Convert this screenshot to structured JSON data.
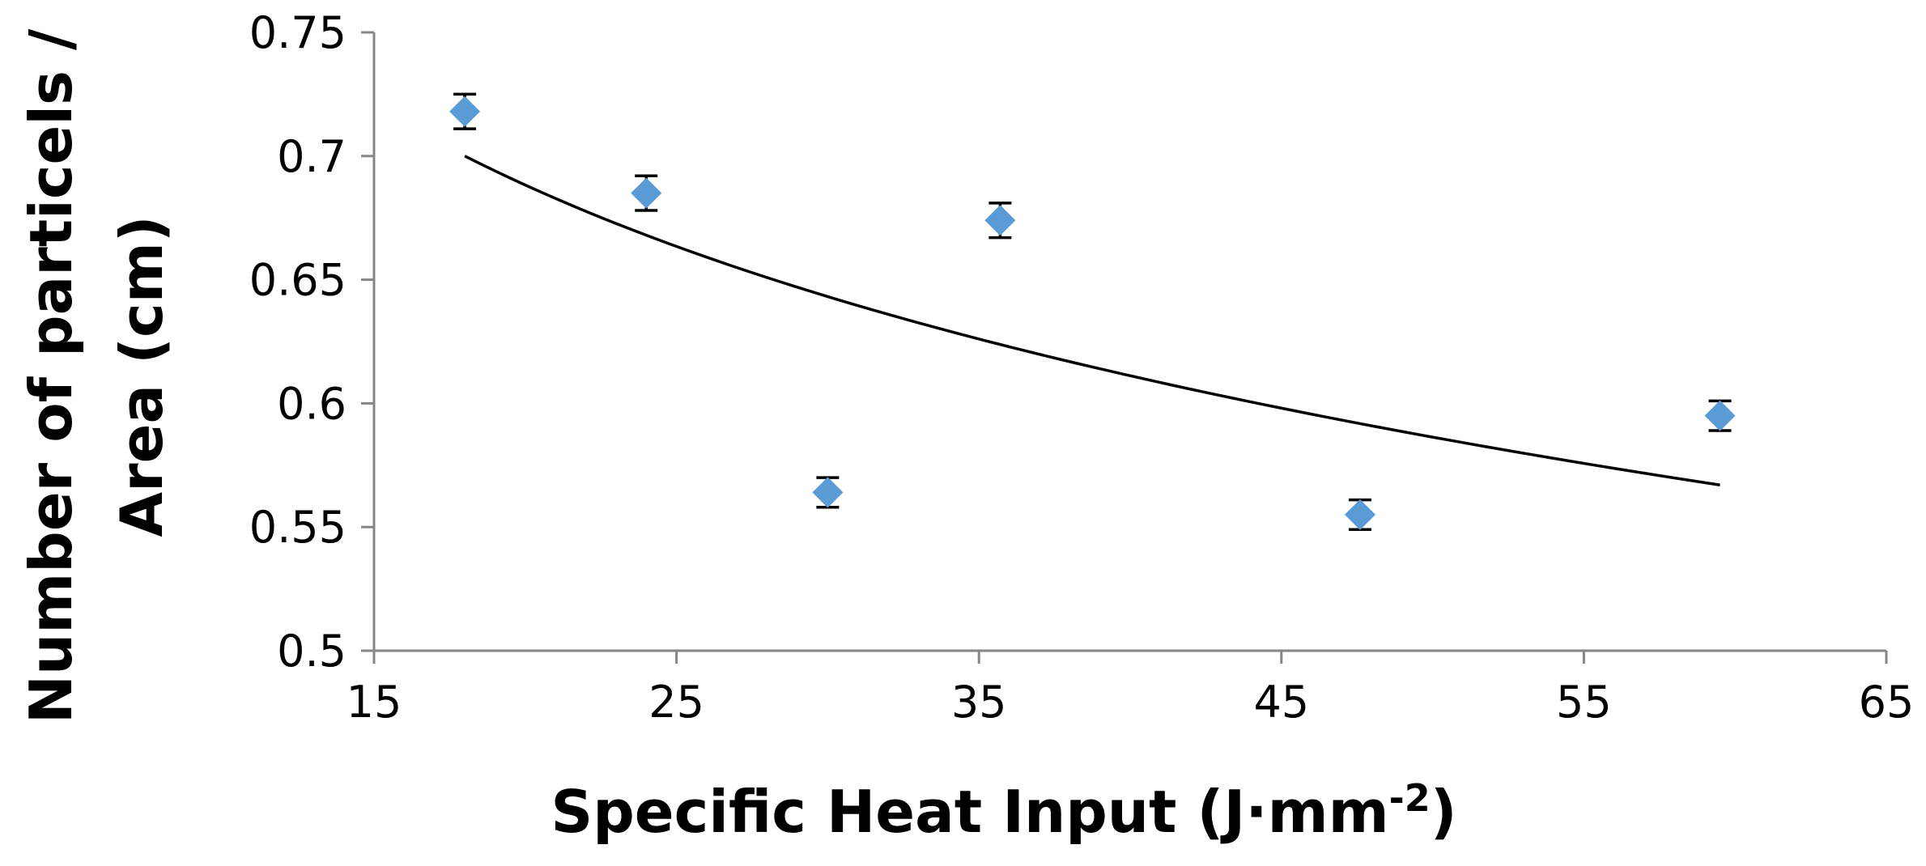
{
  "chart_data": {
    "type": "scatter",
    "title": "",
    "xlabel": "Specific Heat Input (J·mm",
    "xlabel_superscript": "-2",
    "xlabel_close": ")",
    "ylabel_line1": "Number of particels /",
    "ylabel_line2": "Area  (cm)",
    "xlim": [
      15,
      65
    ],
    "ylim": [
      0.5,
      0.75
    ],
    "x_ticks": [
      15,
      25,
      35,
      45,
      55,
      65
    ],
    "x_tick_labels": [
      "15",
      "25",
      "35",
      "45",
      "55",
      "65"
    ],
    "y_ticks": [
      0.5,
      0.55,
      0.6,
      0.65,
      0.7,
      0.75
    ],
    "y_tick_labels": [
      "0.5",
      "0.55",
      "0.6",
      "0.65",
      "0.7",
      "0.75"
    ],
    "grid": false,
    "legend": "none",
    "marker": "diamond",
    "marker_color": "#5B9BD5",
    "series": [
      {
        "x": [
          18.0,
          24.0,
          30.0,
          35.7,
          47.6,
          59.5
        ],
        "y": [
          0.718,
          0.685,
          0.564,
          0.674,
          0.555,
          0.595
        ],
        "y_error": [
          0.007,
          0.007,
          0.006,
          0.007,
          0.006,
          0.006
        ]
      }
    ],
    "trendline": {
      "type": "logarithmic",
      "x_range": [
        18.0,
        59.5
      ],
      "y_at_start": 0.7,
      "y_at_end": 0.567,
      "color": "#000000"
    }
  }
}
